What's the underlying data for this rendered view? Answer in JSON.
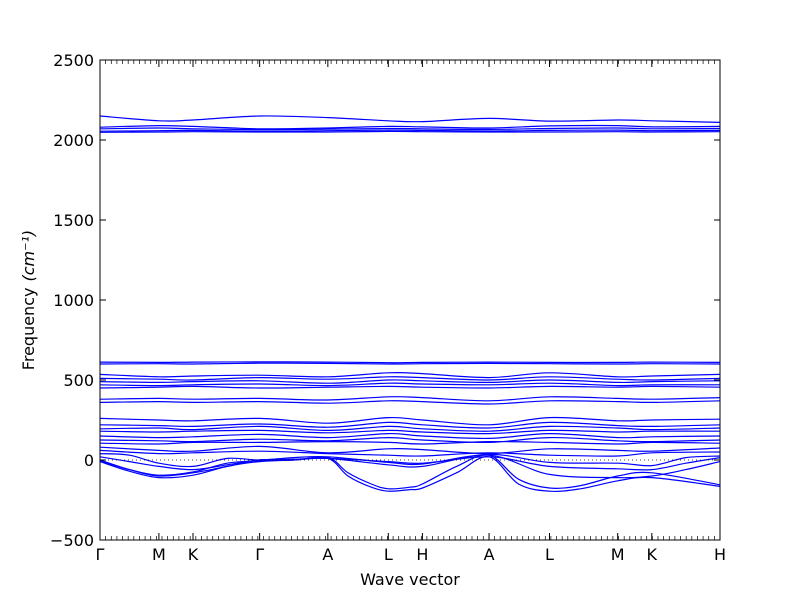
{
  "chart_data": {
    "type": "line",
    "xlabel": "Wave vector",
    "ylabel": "Frequency",
    "ylabel_unit": "(cm⁻¹)",
    "ylim": [
      -500,
      2500
    ],
    "yticks": [
      -500,
      0,
      500,
      1000,
      1500,
      2000,
      2500
    ],
    "xlim": [
      0,
      4.0
    ],
    "xticks": [
      {
        "label": "Γ",
        "x": 0.0
      },
      {
        "label": "M",
        "x": 0.38
      },
      {
        "label": "K",
        "x": 0.6
      },
      {
        "label": "Γ",
        "x": 1.03
      },
      {
        "label": "A",
        "x": 1.47
      },
      {
        "label": "L",
        "x": 1.86
      },
      {
        "label": "H",
        "x": 2.08
      },
      {
        "label": "A",
        "x": 2.51
      },
      {
        "label": "L",
        "x": 2.9
      },
      {
        "label": "M",
        "x": 3.34
      },
      {
        "label": "K",
        "x": 3.56
      },
      {
        "label": "H",
        "x": 4.0
      }
    ],
    "line_color": "#0000ff",
    "zero_line": true,
    "grid": false,
    "series": [
      {
        "x": [
          0,
          0.38,
          0.6,
          1.03,
          1.47,
          1.86,
          2.08,
          2.51,
          2.9,
          3.34,
          3.56,
          4.0
        ],
        "y": [
          2150,
          2120,
          2125,
          2150,
          2140,
          2120,
          2115,
          2135,
          2118,
          2125,
          2120,
          2110
        ]
      },
      {
        "x": [
          0,
          0.38,
          0.6,
          1.03,
          1.47,
          1.86,
          2.08,
          2.51,
          2.9,
          3.34,
          3.56,
          4.0
        ],
        "y": [
          2080,
          2090,
          2085,
          2070,
          2075,
          2085,
          2082,
          2075,
          2088,
          2090,
          2082,
          2085
        ]
      },
      {
        "x": [
          0,
          0.38,
          0.6,
          1.03,
          1.47,
          1.86,
          2.08,
          2.51,
          2.9,
          3.34,
          3.56,
          4.0
        ],
        "y": [
          2070,
          2075,
          2070,
          2065,
          2068,
          2072,
          2070,
          2066,
          2072,
          2075,
          2070,
          2072
        ]
      },
      {
        "x": [
          0,
          0.38,
          0.6,
          1.03,
          1.47,
          1.86,
          2.08,
          2.51,
          2.9,
          3.34,
          3.56,
          4.0
        ],
        "y": [
          2055,
          2058,
          2060,
          2055,
          2058,
          2062,
          2060,
          2056,
          2060,
          2062,
          2058,
          2060
        ]
      },
      {
        "x": [
          0,
          0.38,
          0.6,
          1.03,
          1.47,
          1.86,
          2.08,
          2.51,
          2.9,
          3.34,
          3.56,
          4.0
        ],
        "y": [
          2048,
          2050,
          2052,
          2050,
          2050,
          2054,
          2052,
          2050,
          2050,
          2052,
          2050,
          2052
        ]
      },
      {
        "x": [
          0,
          0.38,
          0.6,
          1.03,
          1.47,
          1.86,
          2.08,
          2.51,
          2.9,
          3.34,
          3.56,
          4.0
        ],
        "y": [
          612,
          610,
          612,
          613,
          612,
          608,
          610,
          612,
          610,
          610,
          612,
          610
        ]
      },
      {
        "x": [
          0,
          0.38,
          0.6,
          1.03,
          1.47,
          1.86,
          2.08,
          2.51,
          2.9,
          3.34,
          3.56,
          4.0
        ],
        "y": [
          600,
          602,
          600,
          605,
          604,
          600,
          602,
          604,
          602,
          600,
          602,
          600
        ]
      },
      {
        "x": [
          0,
          0.38,
          0.6,
          1.03,
          1.47,
          1.86,
          2.08,
          2.51,
          2.9,
          3.34,
          3.56,
          4.0
        ],
        "y": [
          535,
          520,
          525,
          530,
          520,
          545,
          540,
          515,
          545,
          520,
          525,
          535
        ]
      },
      {
        "x": [
          0,
          0.38,
          0.6,
          1.03,
          1.47,
          1.86,
          2.08,
          2.51,
          2.9,
          3.34,
          3.56,
          4.0
        ],
        "y": [
          510,
          505,
          500,
          515,
          505,
          520,
          515,
          500,
          520,
          505,
          500,
          510
        ]
      },
      {
        "x": [
          0,
          0.38,
          0.6,
          1.03,
          1.47,
          1.86,
          2.08,
          2.51,
          2.9,
          3.34,
          3.56,
          4.0
        ],
        "y": [
          490,
          485,
          490,
          495,
          480,
          500,
          495,
          485,
          500,
          485,
          490,
          495
        ]
      },
      {
        "x": [
          0,
          0.38,
          0.6,
          1.03,
          1.47,
          1.86,
          2.08,
          2.51,
          2.9,
          3.34,
          3.56,
          4.0
        ],
        "y": [
          470,
          465,
          470,
          475,
          465,
          480,
          475,
          470,
          480,
          465,
          470,
          470
        ]
      },
      {
        "x": [
          0,
          0.38,
          0.6,
          1.03,
          1.47,
          1.86,
          2.08,
          2.51,
          2.9,
          3.34,
          3.56,
          4.0
        ],
        "y": [
          450,
          455,
          460,
          450,
          455,
          460,
          455,
          450,
          460,
          455,
          460,
          455
        ]
      },
      {
        "x": [
          0,
          0.38,
          0.6,
          1.03,
          1.47,
          1.86,
          2.08,
          2.51,
          2.9,
          3.34,
          3.56,
          4.0
        ],
        "y": [
          380,
          385,
          380,
          385,
          375,
          395,
          390,
          370,
          395,
          385,
          380,
          390
        ]
      },
      {
        "x": [
          0,
          0.38,
          0.6,
          1.03,
          1.47,
          1.86,
          2.08,
          2.51,
          2.9,
          3.34,
          3.56,
          4.0
        ],
        "y": [
          360,
          365,
          360,
          365,
          355,
          370,
          365,
          350,
          370,
          365,
          360,
          370
        ]
      },
      {
        "x": [
          0,
          0.38,
          0.6,
          1.03,
          1.47,
          1.86,
          2.08,
          2.51,
          2.9,
          3.34,
          3.56,
          4.0
        ],
        "y": [
          260,
          250,
          245,
          260,
          230,
          265,
          250,
          220,
          265,
          245,
          250,
          255
        ]
      },
      {
        "x": [
          0,
          0.38,
          0.6,
          1.03,
          1.47,
          1.86,
          2.08,
          2.51,
          2.9,
          3.34,
          3.56,
          4.0
        ],
        "y": [
          220,
          215,
          210,
          225,
          205,
          235,
          220,
          200,
          235,
          215,
          210,
          220
        ]
      },
      {
        "x": [
          0,
          0.38,
          0.6,
          1.03,
          1.47,
          1.86,
          2.08,
          2.51,
          2.9,
          3.34,
          3.56,
          4.0
        ],
        "y": [
          195,
          200,
          190,
          210,
          185,
          210,
          195,
          180,
          210,
          200,
          190,
          200
        ]
      },
      {
        "x": [
          0,
          0.38,
          0.6,
          1.03,
          1.47,
          1.86,
          2.08,
          2.51,
          2.9,
          3.34,
          3.56,
          4.0
        ],
        "y": [
          180,
          175,
          180,
          185,
          170,
          185,
          175,
          165,
          185,
          175,
          180,
          180
        ]
      },
      {
        "x": [
          0,
          0.38,
          0.6,
          1.03,
          1.47,
          1.86,
          2.08,
          2.51,
          2.9,
          3.34,
          3.56,
          4.0
        ],
        "y": [
          150,
          140,
          145,
          160,
          140,
          165,
          150,
          135,
          165,
          140,
          145,
          150
        ]
      },
      {
        "x": [
          0,
          0.38,
          0.6,
          1.03,
          1.47,
          1.86,
          2.08,
          2.51,
          2.9,
          3.34,
          3.56,
          4.0
        ],
        "y": [
          125,
          120,
          115,
          130,
          120,
          140,
          125,
          110,
          140,
          120,
          115,
          125
        ]
      },
      {
        "x": [
          0,
          0.38,
          0.6,
          1.03,
          1.47,
          1.86,
          2.08,
          2.51,
          2.9,
          3.34,
          3.56,
          4.0
        ],
        "y": [
          105,
          100,
          110,
          110,
          115,
          110,
          100,
          115,
          110,
          100,
          110,
          105
        ]
      },
      {
        "x": [
          0,
          0.38,
          0.6,
          1.03,
          1.47,
          1.86,
          2.08,
          2.51,
          2.9,
          3.34,
          3.56,
          4.0
        ],
        "y": [
          80,
          60,
          55,
          85,
          45,
          70,
          65,
          40,
          70,
          60,
          55,
          75
        ]
      },
      {
        "x": [
          0,
          0.38,
          0.6,
          1.03,
          1.47,
          1.86,
          2.08,
          2.51,
          2.9,
          3.34,
          3.56,
          4.0
        ],
        "y": [
          60,
          40,
          45,
          55,
          40,
          30,
          25,
          45,
          30,
          25,
          45,
          50
        ]
      },
      {
        "x": [
          0,
          0.19,
          0.38,
          0.6,
          0.82,
          1.03,
          1.25,
          1.47,
          1.86,
          2.08,
          2.51,
          2.9,
          3.34,
          3.56,
          3.78,
          4.0
        ],
        "y": [
          40,
          30,
          -20,
          -40,
          10,
          0,
          15,
          20,
          -15,
          -25,
          35,
          -15,
          -20,
          -35,
          15,
          25
        ]
      },
      {
        "x": [
          0,
          0.19,
          0.38,
          0.6,
          0.82,
          1.03,
          1.25,
          1.47,
          1.86,
          2.08,
          2.51,
          2.9,
          3.34,
          3.56,
          3.78,
          4.0
        ],
        "y": [
          20,
          -10,
          -40,
          -60,
          -30,
          0,
          5,
          10,
          -10,
          -20,
          20,
          -40,
          -55,
          -60,
          -20,
          15
        ]
      },
      {
        "x": [
          0,
          0.19,
          0.38,
          0.6,
          0.82,
          1.03,
          1.25,
          1.47,
          1.86,
          2.08,
          2.51,
          2.9,
          3.34,
          3.56,
          3.78,
          4.0
        ],
        "y": [
          0,
          -60,
          -100,
          -80,
          -40,
          0,
          2,
          10,
          -30,
          -40,
          30,
          -90,
          -110,
          -100,
          -60,
          -10
        ]
      },
      {
        "x": [
          0,
          0.19,
          0.38,
          0.6,
          0.82,
          1.03,
          1.25,
          1.47,
          1.6,
          1.75,
          1.86,
          2.0,
          2.08,
          2.3,
          2.51,
          2.7,
          2.9,
          3.1,
          3.34,
          3.56,
          4.0
        ],
        "y": [
          -5,
          -60,
          -95,
          -75,
          -20,
          -5,
          0,
          10,
          -100,
          -170,
          -195,
          -185,
          -175,
          -80,
          20,
          -150,
          -195,
          -180,
          -130,
          -110,
          -165
        ]
      },
      {
        "x": [
          0,
          0.19,
          0.38,
          0.6,
          0.82,
          1.03,
          1.25,
          1.47,
          1.6,
          1.75,
          1.86,
          2.0,
          2.08,
          2.3,
          2.51,
          2.7,
          2.9,
          3.1,
          3.34,
          3.56,
          4.0
        ],
        "y": [
          -10,
          -70,
          -110,
          -95,
          -40,
          -10,
          0,
          15,
          -80,
          -150,
          -180,
          -170,
          -150,
          -40,
          30,
          -120,
          -175,
          -160,
          -100,
          -80,
          -155
        ]
      }
    ]
  }
}
